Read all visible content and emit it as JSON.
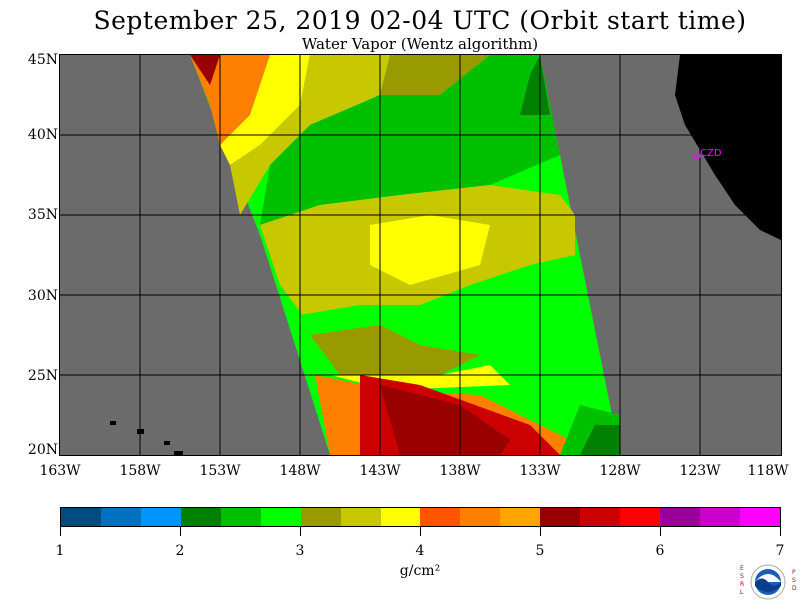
{
  "header": {
    "title": "September 25, 2019  02-04 UTC  (Orbit start time)",
    "subtitle": "Water Vapor (Wentz algorithm)"
  },
  "map": {
    "lat_labels": [
      "45N",
      "40N",
      "35N",
      "30N",
      "25N",
      "20N"
    ],
    "lon_labels": [
      "163W",
      "158W",
      "153W",
      "148W",
      "143W",
      "138W",
      "133W",
      "128W",
      "123W",
      "118W"
    ],
    "city_label": "CZD",
    "colors": {
      "no_data": "#6b6b6b",
      "land": "#000000",
      "grid": "#000000"
    }
  },
  "colorbar": {
    "labels": [
      "1",
      "2",
      "3",
      "4",
      "5",
      "6",
      "7"
    ],
    "unit_label": "g/cm²",
    "colors": [
      "#004b80",
      "#0070c0",
      "#0094ff",
      "#008000",
      "#00c000",
      "#00ff00",
      "#999900",
      "#c8c800",
      "#ffff00",
      "#ff5500",
      "#ff7f00",
      "#ffa500",
      "#990000",
      "#cc0000",
      "#ff0000",
      "#990099",
      "#cc00cc",
      "#ff00ff"
    ]
  },
  "logo": {
    "left_text": "ESRL",
    "right_text": "PSD",
    "name": "NOAA"
  }
}
